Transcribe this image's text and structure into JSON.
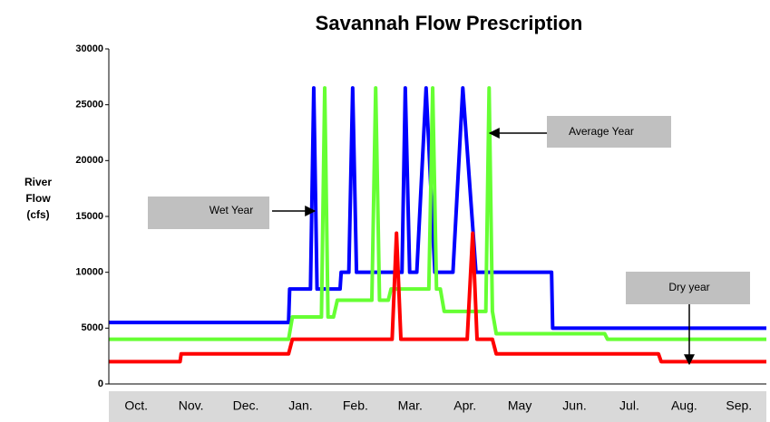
{
  "chart_data": {
    "type": "line",
    "title": "Savannah Flow Prescription",
    "ylabel": [
      "River",
      "Flow",
      "(cfs)"
    ],
    "xlim": [
      0,
      12
    ],
    "xticks": [
      {
        "value": 0.5,
        "label": "Oct."
      },
      {
        "value": 1.5,
        "label": "Nov."
      },
      {
        "value": 2.5,
        "label": "Dec."
      },
      {
        "value": 3.5,
        "label": "Jan."
      },
      {
        "value": 4.5,
        "label": "Feb."
      },
      {
        "value": 5.5,
        "label": "Mar."
      },
      {
        "value": 6.5,
        "label": "Apr."
      },
      {
        "value": 7.5,
        "label": "May"
      },
      {
        "value": 8.5,
        "label": "Jun."
      },
      {
        "value": 9.5,
        "label": "Jul."
      },
      {
        "value": 10.5,
        "label": "Aug."
      },
      {
        "value": 11.5,
        "label": "Sep."
      }
    ],
    "ylim": [
      0,
      30000
    ],
    "yticks": [
      0,
      5000,
      10000,
      15000,
      20000,
      25000,
      30000
    ],
    "grid": false,
    "series": [
      {
        "color": "#0000ff",
        "x": [
          0,
          3.28,
          3.3,
          3.68,
          3.74,
          3.8,
          4.22,
          4.24,
          4.38,
          4.45,
          4.52,
          5.35,
          5.41,
          5.49,
          5.62,
          5.79,
          5.95,
          6.28,
          6.46,
          6.7,
          8.08,
          8.1,
          12
        ],
        "values": [
          5500,
          5500,
          8500,
          8500,
          26500,
          8500,
          8500,
          10000,
          10000,
          26500,
          10000,
          10000,
          26500,
          10000,
          10000,
          26500,
          10000,
          10000,
          26500,
          10000,
          10000,
          5000,
          5000
        ]
      },
      {
        "color": "#66ff33",
        "x": [
          0,
          3.28,
          3.35,
          3.88,
          3.94,
          4.0,
          4.1,
          4.17,
          4.8,
          4.87,
          4.94,
          5.1,
          5.15,
          5.84,
          5.91,
          5.98,
          6.05,
          6.12,
          6.88,
          6.94,
          7.0,
          7.07,
          9.05,
          9.1,
          12
        ],
        "values": [
          4000,
          4000,
          6000,
          6000,
          26500,
          6000,
          6000,
          7500,
          7500,
          26500,
          7500,
          7500,
          8500,
          8500,
          26500,
          8500,
          8500,
          6500,
          6500,
          26500,
          6500,
          4500,
          4500,
          4000,
          4000
        ]
      },
      {
        "color": "#ff0000",
        "x": [
          0,
          1.3,
          1.32,
          3.28,
          3.35,
          5.17,
          5.25,
          5.33,
          6.54,
          6.64,
          6.72,
          7.0,
          7.07,
          10.03,
          10.08,
          12
        ],
        "values": [
          2000,
          2000,
          2700,
          2700,
          4000,
          4000,
          13500,
          4000,
          4000,
          13500,
          4000,
          4000,
          2700,
          2700,
          2000,
          2000
        ]
      }
    ],
    "annotations": [
      "Wet Year",
      "Average Year",
      "Dry year"
    ]
  }
}
